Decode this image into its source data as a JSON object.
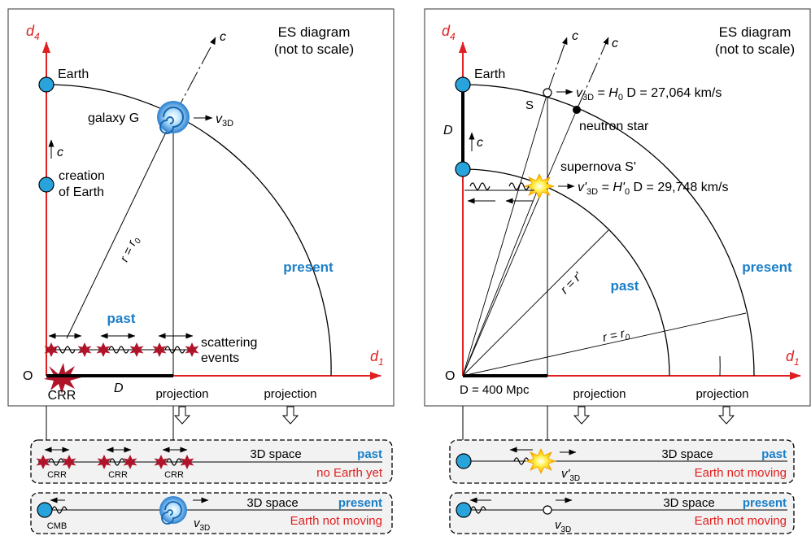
{
  "colors": {
    "axis": "#e02020",
    "blue_label": "#1a7fc8",
    "node_fill": "#29a3dc",
    "red_text": "#e02020",
    "panel_fill": "#f2f2f2",
    "dark_red": "#9c1020"
  },
  "left": {
    "title_line1": "ES diagram",
    "title_line2": "(not to scale)",
    "axis_v_main": "d",
    "axis_v_sub": "4",
    "axis_h_main": "d",
    "axis_h_sub": "1",
    "origin": "O",
    "earth": "Earth",
    "creation_line1": "creation",
    "creation_line2": "of Earth",
    "c_label": "c",
    "c_ray": "c",
    "galaxy": "galaxy G",
    "v_main": "v",
    "v_sub": "3D",
    "radius": "r = r",
    "radius_sub": "0",
    "present": "present",
    "past": "past",
    "scattering_line1": "scattering",
    "scattering_line2": "events",
    "crr": "CRR",
    "d_label": "D",
    "projection_1": "projection",
    "projection_2": "projection",
    "box_past": {
      "space": "3D space",
      "era": "past",
      "note": "no Earth yet",
      "crr_1": "CRR",
      "crr_2": "CRR",
      "crr_3": "CRR"
    },
    "box_present": {
      "space": "3D space",
      "era": "present",
      "note": "Earth not moving",
      "cmb": "CMB",
      "v_main": "v",
      "v_sub": "3D"
    }
  },
  "right": {
    "title_line1": "ES diagram",
    "title_line2": "(not to scale)",
    "axis_v_main": "d",
    "axis_v_sub": "4",
    "axis_h_main": "d",
    "axis_h_sub": "1",
    "origin": "O",
    "earth": "Earth",
    "c_ray_1": "c",
    "c_ray_2": "c",
    "c_label": "c",
    "d_label": "D",
    "s_label": "S",
    "neutron": "neutron star",
    "supernova": "supernova S'",
    "v_eq_1": {
      "v": "v",
      "sub": "3D",
      "eq": " = ",
      "h": "H",
      "hsub": "0",
      "tail": " D = 27,064 km/s"
    },
    "v_eq_2": {
      "v": "v'",
      "sub": "3D",
      "eq": " = ",
      "h": "H'",
      "hsub": "0",
      "tail": " D = 29,748 km/s"
    },
    "radius_prime": "r = r'",
    "radius_zero": "r = r",
    "radius_zero_sub": "0",
    "past": "past",
    "present": "present",
    "distance": "D = 400 Mpc",
    "projection_1": "projection",
    "projection_2": "projection",
    "box_past": {
      "space": "3D space",
      "era": "past",
      "note": "Earth not moving",
      "v_main": "v'",
      "v_sub": "3D"
    },
    "box_present": {
      "space": "3D space",
      "era": "present",
      "note": "Earth not moving",
      "v_main": "v",
      "v_sub": "3D"
    }
  }
}
